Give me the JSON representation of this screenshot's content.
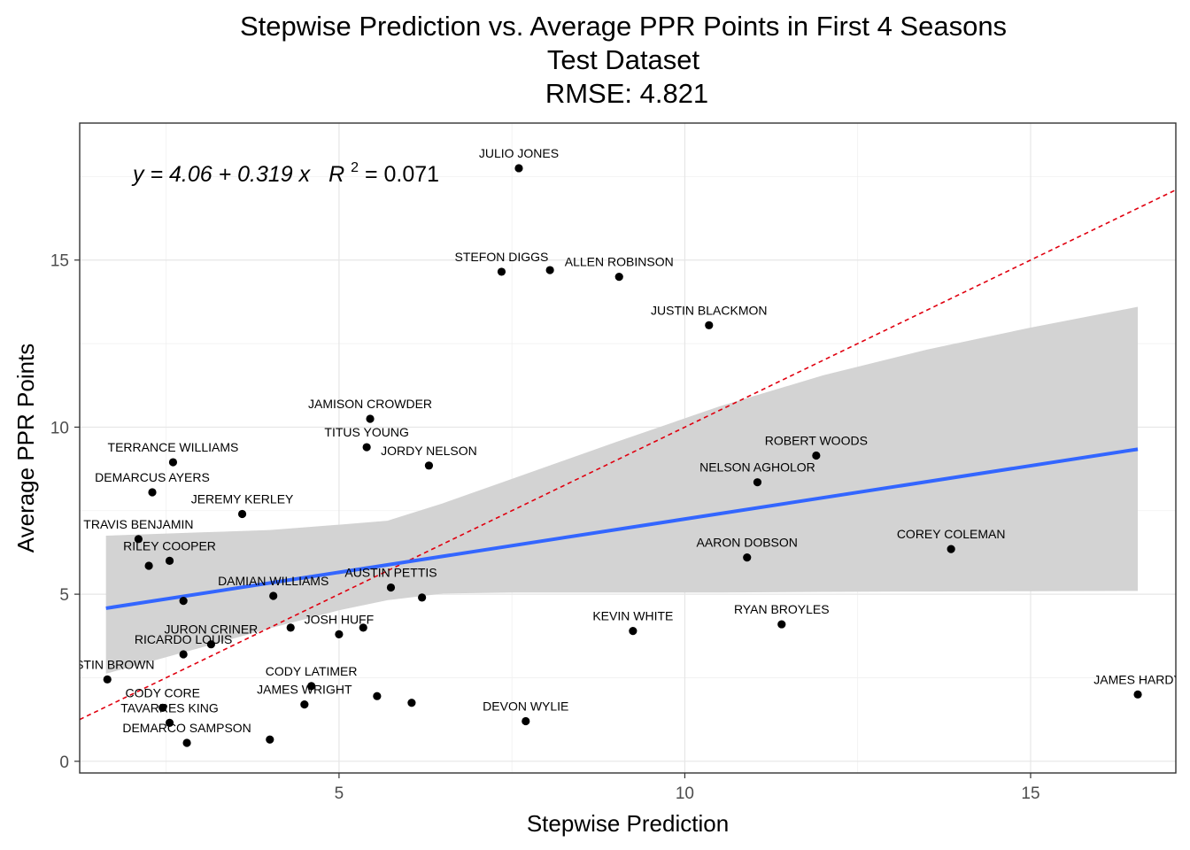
{
  "chart_data": {
    "type": "scatter",
    "title": [
      "Stepwise Prediction vs. Average PPR Points in First 4 Seasons",
      "Test Dataset",
      "RMSE: 4.821"
    ],
    "xlabel": "Stepwise Prediction",
    "ylabel": "Average PPR Points",
    "xlim": [
      1.25,
      17.1
    ],
    "ylim": [
      -0.35,
      19.1
    ],
    "xticks": [
      5,
      10,
      15
    ],
    "yticks": [
      0,
      5,
      10,
      15
    ],
    "grid": true,
    "equation": {
      "y_part": "y = 4.06 + 0.319 x",
      "r2_part": "R",
      "r2_sup": "2",
      "r2_value": " = 0.071"
    },
    "fit": {
      "intercept": 4.06,
      "slope": 0.319,
      "x_range": [
        1.63,
        16.55
      ],
      "color": "#3366FF"
    },
    "identity_line": {
      "color": "#E0000F",
      "style": "dashed"
    },
    "confidence_band": {
      "color": "#d3d3d3",
      "x": [
        1.63,
        3,
        4,
        5,
        5.7,
        6.5,
        7.5,
        9,
        10.5,
        12,
        13.5,
        15,
        16.55
      ],
      "upper": [
        6.75,
        6.85,
        6.92,
        7.08,
        7.2,
        7.72,
        8.45,
        9.55,
        10.62,
        11.55,
        12.32,
        12.98,
        13.6
      ],
      "lower": [
        2.62,
        3.4,
        3.98,
        4.52,
        4.82,
        5.02,
        5.05,
        5.05,
        5.05,
        5.07,
        5.08,
        5.09,
        5.1
      ]
    },
    "points": [
      {
        "x": 7.6,
        "y": 17.75,
        "label": "JULIO JONES"
      },
      {
        "x": 7.35,
        "y": 14.65,
        "label": "STEFON DIGGS"
      },
      {
        "x": 8.05,
        "y": 14.7,
        "label": ""
      },
      {
        "x": 9.05,
        "y": 14.5,
        "label": "ALLEN ROBINSON"
      },
      {
        "x": 10.35,
        "y": 13.05,
        "label": "JUSTIN BLACKMON"
      },
      {
        "x": 5.45,
        "y": 10.25,
        "label": "JAMISON CROWDER"
      },
      {
        "x": 5.4,
        "y": 9.4,
        "label": "TITUS YOUNG"
      },
      {
        "x": 6.3,
        "y": 8.85,
        "label": "JORDY NELSON"
      },
      {
        "x": 2.6,
        "y": 8.95,
        "label": "TERRANCE WILLIAMS"
      },
      {
        "x": 2.3,
        "y": 8.05,
        "label": "DEMARCUS AYERS"
      },
      {
        "x": 3.6,
        "y": 7.4,
        "label": "JEREMY KERLEY"
      },
      {
        "x": 11.9,
        "y": 9.15,
        "label": "ROBERT WOODS"
      },
      {
        "x": 11.05,
        "y": 8.35,
        "label": "NELSON AGHOLOR"
      },
      {
        "x": 2.1,
        "y": 6.65,
        "label": "TRAVIS BENJAMIN"
      },
      {
        "x": 2.25,
        "y": 5.85,
        "label": ""
      },
      {
        "x": 2.55,
        "y": 6.0,
        "label": "RILEY COOPER"
      },
      {
        "x": 10.9,
        "y": 6.1,
        "label": "AARON DOBSON"
      },
      {
        "x": 13.85,
        "y": 6.35,
        "label": "COREY COLEMAN"
      },
      {
        "x": 2.75,
        "y": 4.8,
        "label": ""
      },
      {
        "x": 4.05,
        "y": 4.95,
        "label": "DAMIAN WILLIAMS"
      },
      {
        "x": 5.75,
        "y": 5.2,
        "label": "AUSTIN PETTIS"
      },
      {
        "x": 6.2,
        "y": 4.9,
        "label": ""
      },
      {
        "x": 4.3,
        "y": 4.0,
        "label": ""
      },
      {
        "x": 5.35,
        "y": 4.0,
        "label": ""
      },
      {
        "x": 5.0,
        "y": 3.8,
        "label": "JOSH HUFF"
      },
      {
        "x": 9.25,
        "y": 3.9,
        "label": "KEVIN WHITE"
      },
      {
        "x": 11.4,
        "y": 4.1,
        "label": "RYAN BROYLES"
      },
      {
        "x": 3.15,
        "y": 3.5,
        "label": "JURON CRINER"
      },
      {
        "x": 2.75,
        "y": 3.2,
        "label": "RICARDO LOUIS"
      },
      {
        "x": 1.65,
        "y": 2.45,
        "label": "JUSTIN BROWN"
      },
      {
        "x": 4.6,
        "y": 2.25,
        "label": "CODY LATIMER"
      },
      {
        "x": 5.55,
        "y": 1.95,
        "label": ""
      },
      {
        "x": 4.5,
        "y": 1.7,
        "label": "JAMES WRIGHT"
      },
      {
        "x": 6.05,
        "y": 1.75,
        "label": ""
      },
      {
        "x": 2.45,
        "y": 1.6,
        "label": "CODY CORE"
      },
      {
        "x": 2.55,
        "y": 1.15,
        "label": "TAVARRES KING"
      },
      {
        "x": 7.7,
        "y": 1.2,
        "label": "DEVON WYLIE"
      },
      {
        "x": 2.8,
        "y": 0.55,
        "label": "DEMARCO SAMPSON"
      },
      {
        "x": 4.0,
        "y": 0.65,
        "label": ""
      },
      {
        "x": 16.55,
        "y": 2.0,
        "label": "JAMES HARDY"
      }
    ]
  }
}
